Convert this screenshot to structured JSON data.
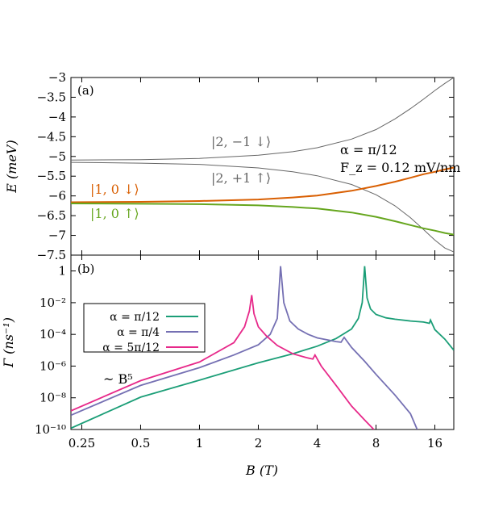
{
  "chart_data": [
    {
      "type": "line",
      "panel_label": "(a)",
      "xlabel": "",
      "ylabel": "E (meV)",
      "xscale": "log",
      "xlim": [
        0.22,
        20
      ],
      "ylim": [
        -7.5,
        -3
      ],
      "yticks": [
        "-3",
        "-3.5",
        "-4",
        "-4.5",
        "-5",
        "-5.5",
        "-6",
        "-6.5",
        "-7",
        "-7.5"
      ],
      "x": [
        0.22,
        0.5,
        1,
        2,
        3,
        4,
        6,
        8,
        10,
        12,
        14,
        16,
        18,
        20
      ],
      "series": [
        {
          "name": "|2, −1 ↓⟩",
          "color": "#666666",
          "values": [
            -5.09,
            -5.08,
            -5.05,
            -4.97,
            -4.88,
            -4.78,
            -4.56,
            -4.32,
            -4.05,
            -3.79,
            -3.55,
            -3.33,
            -3.15,
            -3.0
          ]
        },
        {
          "name": "|2, +1 ↑⟩",
          "color": "#666666",
          "values": [
            -5.15,
            -5.17,
            -5.2,
            -5.29,
            -5.39,
            -5.49,
            -5.71,
            -5.97,
            -6.25,
            -6.55,
            -6.85,
            -7.12,
            -7.32,
            -7.42
          ]
        },
        {
          "name": "|1, 0 ↓⟩",
          "color": "#d95f02",
          "values": [
            -6.16,
            -6.15,
            -6.13,
            -6.09,
            -6.04,
            -5.99,
            -5.87,
            -5.75,
            -5.64,
            -5.54,
            -5.45,
            -5.39,
            -5.33,
            -5.28
          ]
        },
        {
          "name": "|1, 0 ↑⟩",
          "color": "#66a61e",
          "values": [
            -6.19,
            -6.2,
            -6.21,
            -6.24,
            -6.28,
            -6.32,
            -6.42,
            -6.53,
            -6.64,
            -6.74,
            -6.82,
            -6.88,
            -6.94,
            -6.98
          ]
        }
      ],
      "annotations": [
        "α = π/12",
        "F_z = 0.12 mV/nm"
      ]
    },
    {
      "type": "line",
      "panel_label": "(b)",
      "xlabel": "B (T)",
      "ylabel": "Γ (ns⁻¹)",
      "xscale": "log",
      "yscale": "log",
      "xlim": [
        0.22,
        20
      ],
      "ylim": [
        1e-10,
        10
      ],
      "xticks": [
        "0.25",
        "0.5",
        "1",
        "2",
        "4",
        "8",
        "16"
      ],
      "yticks": [
        "1",
        "10⁻²",
        "10⁻⁴",
        "10⁻⁶",
        "10⁻⁸",
        "10⁻¹⁰"
      ],
      "legend_position": "top-left",
      "annotation": "~ B⁵",
      "series": [
        {
          "name": "α = π/12",
          "color": "#1b9e77",
          "x": [
            0.22,
            0.5,
            1,
            2,
            3,
            4,
            5,
            6,
            6.5,
            6.8,
            7.0,
            7.2,
            7.5,
            8,
            9,
            10,
            12,
            14,
            15,
            15.2,
            16,
            18,
            20
          ],
          "values": [
            1.2e-10,
            1.1e-08,
            1.3e-07,
            1.6e-06,
            6e-06,
            1.8e-05,
            5.5e-05,
            0.00022,
            0.001,
            0.01,
            2.0,
            0.02,
            0.004,
            0.0018,
            0.0011,
            0.0009,
            0.0007,
            0.0006,
            0.0005,
            0.0008,
            0.0002,
            5e-05,
            1e-05
          ]
        },
        {
          "name": "α = π/4",
          "color": "#7570b3",
          "x": [
            0.22,
            0.5,
            1,
            1.5,
            2.0,
            2.3,
            2.5,
            2.6,
            2.7,
            2.9,
            3.2,
            3.6,
            4,
            5,
            5.3,
            5.5,
            6,
            7,
            8,
            10,
            12,
            13
          ],
          "values": [
            8e-10,
            6e-08,
            8e-07,
            5e-06,
            2.2e-05,
            0.0001,
            0.001,
            2.0,
            0.01,
            0.0007,
            0.00022,
            0.0001,
            6e-05,
            3.5e-05,
            3.2e-05,
            6.5e-05,
            1.5e-05,
            2e-06,
            3e-07,
            1.5e-08,
            1e-09,
            1e-10
          ]
        },
        {
          "name": "α = 5π/12",
          "color": "#e7298a",
          "x": [
            0.22,
            0.5,
            1,
            1.5,
            1.7,
            1.8,
            1.85,
            1.9,
            2.0,
            2.2,
            2.5,
            3.0,
            3.5,
            3.8,
            3.9,
            4.2,
            5,
            6,
            7,
            7.8
          ],
          "values": [
            1.5e-09,
            1.2e-07,
            1.8e-06,
            3e-05,
            0.0003,
            0.003,
            0.03,
            0.002,
            0.0003,
            8e-05,
            2e-05,
            6e-06,
            3.5e-06,
            2.8e-06,
            5e-06,
            1e-06,
            6e-08,
            3e-09,
            4e-10,
            1e-10
          ]
        }
      ]
    }
  ]
}
